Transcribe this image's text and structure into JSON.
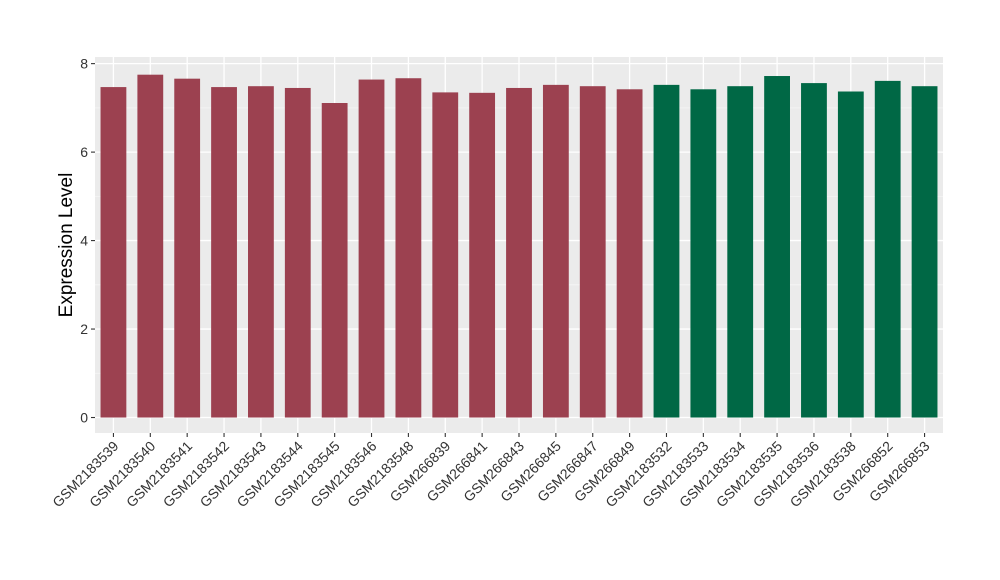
{
  "chart_data": {
    "type": "bar",
    "title": "",
    "xlabel": "",
    "ylabel": "Expression Level",
    "ylim": [
      -0.35,
      8.15
    ],
    "yticks": [
      0,
      2,
      4,
      6,
      8
    ],
    "grid": true,
    "legend": "none",
    "colors": {
      "panel": "#ebebeb",
      "grid_major": "#ffffff",
      "grid_minor": "#f5f5f5",
      "group_a": "#9c4150",
      "group_b": "#006845",
      "tick": "#333333"
    },
    "categories": [
      "GSM2183539",
      "GSM2183540",
      "GSM2183541",
      "GSM2183542",
      "GSM2183543",
      "GSM2183544",
      "GSM2183545",
      "GSM2183546",
      "GSM2183548",
      "GSM266839",
      "GSM266841",
      "GSM266843",
      "GSM266845",
      "GSM266847",
      "GSM266849",
      "GSM2183532",
      "GSM2183533",
      "GSM2183534",
      "GSM2183535",
      "GSM2183536",
      "GSM2183538",
      "GSM266852",
      "GSM266853"
    ],
    "values": [
      7.47,
      7.75,
      7.66,
      7.47,
      7.49,
      7.45,
      7.11,
      7.64,
      7.67,
      7.35,
      7.34,
      7.45,
      7.52,
      7.49,
      7.42,
      7.52,
      7.42,
      7.49,
      7.72,
      7.56,
      7.37,
      7.61,
      7.49
    ],
    "groups": [
      "a",
      "a",
      "a",
      "a",
      "a",
      "a",
      "a",
      "a",
      "a",
      "a",
      "a",
      "a",
      "a",
      "a",
      "a",
      "b",
      "b",
      "b",
      "b",
      "b",
      "b",
      "b",
      "b"
    ]
  }
}
